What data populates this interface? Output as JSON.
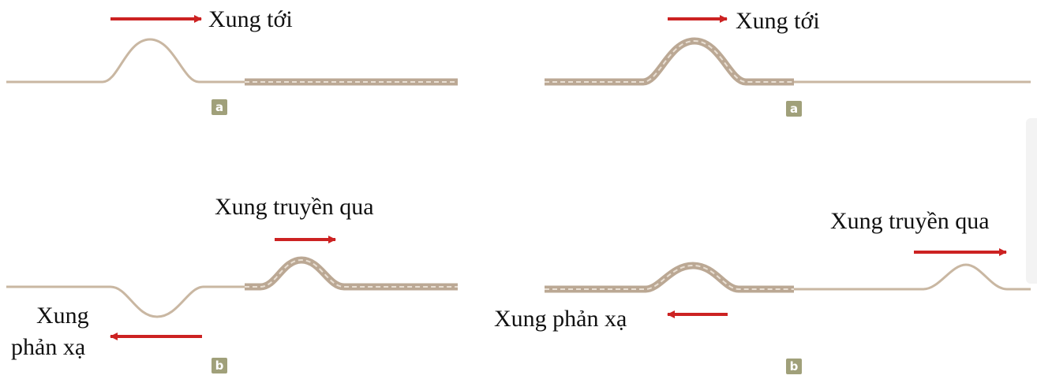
{
  "colors": {
    "arrow": "#cc2222",
    "thin_rope": "#c9b7a2",
    "thick_rope": "#bba894",
    "thick_rope_dash": "#e9dfd3",
    "badge": "#a0a07a"
  },
  "panel_left": {
    "top": {
      "incident_label": "Xung tới",
      "badge": "a"
    },
    "bottom": {
      "transmitted_label": "Xung truyền qua",
      "reflected_label_line1": "Xung",
      "reflected_label_line2": "phản xạ",
      "badge": "b"
    }
  },
  "panel_right": {
    "top": {
      "incident_label": "Xung tới",
      "badge": "a"
    },
    "bottom": {
      "transmitted_label": "Xung truyền qua",
      "reflected_label": "Xung phản xạ",
      "badge": "b"
    }
  }
}
